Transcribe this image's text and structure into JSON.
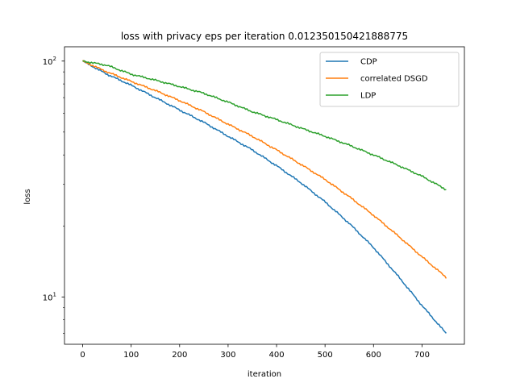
{
  "chart_data": {
    "type": "line",
    "title": "loss with privacy eps per iteration 0.012350150421888775",
    "xlabel": "iteration",
    "ylabel": "loss",
    "xlim": [
      -37.5,
      787.5
    ],
    "ylim": [
      6.3,
      115
    ],
    "yscale": "log",
    "xticks": [
      0,
      100,
      200,
      300,
      400,
      500,
      600,
      700
    ],
    "xtick_labels": [
      "0",
      "100",
      "200",
      "300",
      "400",
      "500",
      "600",
      "700"
    ],
    "yticks": [
      10,
      100
    ],
    "ytick_label_parts": [
      {
        "base": "10",
        "exp": "1"
      },
      {
        "base": "10",
        "exp": "2"
      }
    ],
    "legend_position": "top-right",
    "grid": false,
    "x": [
      0,
      50,
      100,
      150,
      200,
      250,
      300,
      350,
      400,
      450,
      500,
      550,
      600,
      650,
      700,
      750
    ],
    "series": [
      {
        "name": "CDP",
        "color": "#1f77b4",
        "values": [
          100,
          88,
          79,
          70,
          62,
          55,
          48,
          42,
          36,
          30.5,
          25.3,
          20.5,
          16.2,
          12.3,
          9.2,
          7.0
        ]
      },
      {
        "name": "correlated DSGD",
        "color": "#ff7f0e",
        "values": [
          100,
          90,
          82,
          75,
          68,
          61,
          54,
          48,
          42,
          36.5,
          31.5,
          26.6,
          22.2,
          18.2,
          14.8,
          12.1
        ]
      },
      {
        "name": "LDP",
        "color": "#2ca02c",
        "values": [
          100,
          96,
          88,
          83,
          78,
          73,
          67,
          61,
          56.5,
          52,
          48,
          44,
          40,
          36.2,
          32.5,
          28.5
        ]
      }
    ]
  }
}
